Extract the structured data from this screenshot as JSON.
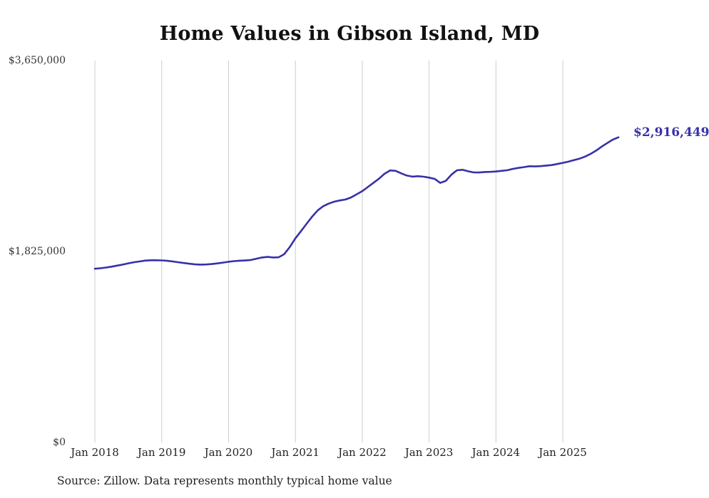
{
  "title": "Home Values in Gibson Island, MD",
  "current_value_label": "$2,916,449",
  "source_note": "Source: Zillow. Data represents monthly typical home value",
  "chart_data": {
    "type": "line",
    "title": "Home Values in Gibson Island, MD",
    "series_name": "Monthly typical home value",
    "line_color": "#3731a8",
    "grid_color": "#cccccc",
    "axis_text_color": "#333333",
    "ylim": [
      0,
      3650000
    ],
    "grid": "vertical-only",
    "legend": "none",
    "annotation": "$2,916,449",
    "y_ticks": [
      {
        "value": 0,
        "label": "$0"
      },
      {
        "value": 1825000,
        "label": "$1,825,000"
      },
      {
        "value": 3650000,
        "label": "$3,650,000"
      }
    ],
    "x_ticks": [
      "Jan 2018",
      "Jan 2019",
      "Jan 2020",
      "Jan 2021",
      "Jan 2022",
      "Jan 2023",
      "Jan 2024",
      "Jan 2025"
    ],
    "x": [
      "2018-01",
      "2018-02",
      "2018-03",
      "2018-04",
      "2018-05",
      "2018-06",
      "2018-07",
      "2018-08",
      "2018-09",
      "2018-10",
      "2018-11",
      "2018-12",
      "2019-01",
      "2019-02",
      "2019-03",
      "2019-04",
      "2019-05",
      "2019-06",
      "2019-07",
      "2019-08",
      "2019-09",
      "2019-10",
      "2019-11",
      "2019-12",
      "2020-01",
      "2020-02",
      "2020-03",
      "2020-04",
      "2020-05",
      "2020-06",
      "2020-07",
      "2020-08",
      "2020-09",
      "2020-10",
      "2020-11",
      "2020-12",
      "2021-01",
      "2021-02",
      "2021-03",
      "2021-04",
      "2021-05",
      "2021-06",
      "2021-07",
      "2021-08",
      "2021-09",
      "2021-10",
      "2021-11",
      "2021-12",
      "2022-01",
      "2022-02",
      "2022-03",
      "2022-04",
      "2022-05",
      "2022-06",
      "2022-07",
      "2022-08",
      "2022-09",
      "2022-10",
      "2022-11",
      "2022-12",
      "2023-01",
      "2023-02",
      "2023-03",
      "2023-04",
      "2023-05",
      "2023-06",
      "2023-07",
      "2023-08",
      "2023-09",
      "2023-10",
      "2023-11",
      "2023-12",
      "2024-01",
      "2024-02",
      "2024-03",
      "2024-04",
      "2024-05",
      "2024-06",
      "2024-07",
      "2024-08",
      "2024-09",
      "2024-10",
      "2024-11",
      "2024-12",
      "2025-01",
      "2025-02",
      "2025-03",
      "2025-04",
      "2025-05",
      "2025-06",
      "2025-07",
      "2025-08",
      "2025-09",
      "2025-10",
      "2025-11"
    ],
    "values": [
      1660000,
      1665000,
      1672000,
      1680000,
      1690000,
      1700000,
      1712000,
      1722000,
      1730000,
      1738000,
      1741000,
      1741000,
      1740000,
      1736000,
      1730000,
      1722000,
      1715000,
      1708000,
      1702000,
      1700000,
      1701000,
      1705000,
      1711000,
      1719000,
      1727000,
      1733000,
      1737000,
      1739000,
      1744000,
      1756000,
      1768000,
      1773000,
      1768000,
      1770000,
      1800000,
      1868000,
      1950000,
      2020000,
      2090000,
      2158000,
      2218000,
      2258000,
      2283000,
      2302000,
      2313000,
      2322000,
      2342000,
      2372000,
      2402000,
      2441000,
      2481000,
      2521000,
      2568000,
      2600000,
      2596000,
      2572000,
      2551000,
      2541000,
      2545000,
      2540000,
      2531000,
      2519000,
      2481000,
      2500000,
      2559000,
      2601000,
      2606000,
      2592000,
      2581000,
      2580000,
      2585000,
      2586000,
      2590000,
      2596000,
      2601000,
      2614000,
      2624000,
      2631000,
      2640000,
      2638000,
      2641000,
      2646000,
      2651000,
      2661000,
      2672000,
      2684000,
      2698000,
      2712000,
      2732000,
      2758000,
      2790000,
      2828000,
      2862000,
      2895000,
      2916449
    ]
  }
}
